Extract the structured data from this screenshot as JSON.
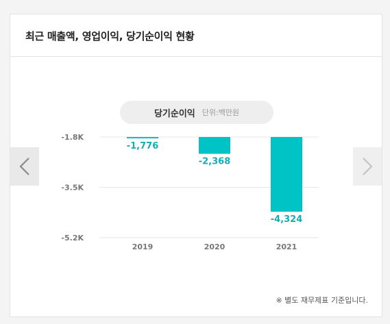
{
  "card": {
    "title": "최근 매출액, 영업이익, 당기순이익 현황"
  },
  "chart_label": {
    "name": "당기순이익",
    "unit": "단위:백만원"
  },
  "nav": {
    "prev_icon": "chevron-left-icon",
    "next_icon": "chevron-right-icon"
  },
  "footnote": "※ 별도 재무제표 기준입니다.",
  "colors": {
    "bar": "#00c3c6",
    "value_label": "#12aeb4",
    "gridline": "#e6e6e6",
    "axis_text": "#777777"
  },
  "chart_data": {
    "type": "bar",
    "categories": [
      "2019",
      "2020",
      "2021"
    ],
    "values": [
      -1776,
      -2368,
      -4324
    ],
    "value_labels": [
      "-1,776",
      "-2,368",
      "-4,324"
    ],
    "y_ticks": [
      -1800,
      -3500,
      -5200
    ],
    "y_tick_labels": [
      "-1.8K",
      "-3.5K",
      "-5.2K"
    ],
    "ylim": [
      -5200,
      -1800
    ],
    "grid": true,
    "title": "",
    "xlabel": "",
    "ylabel": ""
  }
}
